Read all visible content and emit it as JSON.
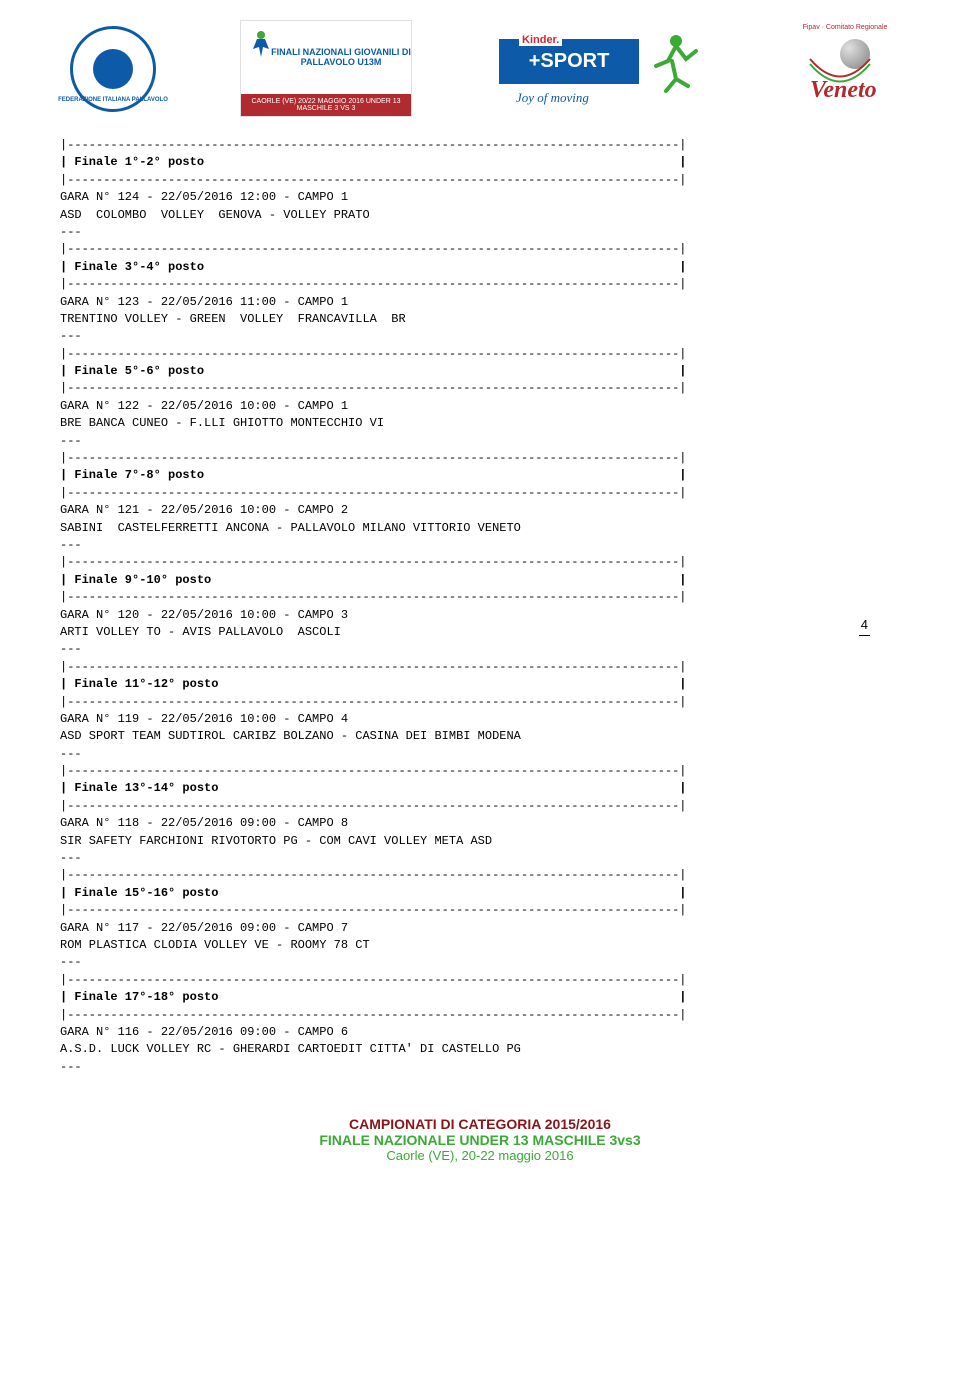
{
  "page_number": "4",
  "header": {
    "fipav_text": "FEDERAZIONE ITALIANA PALLAVOLO",
    "giovanili_top": "FINALI NAZIONALI\nGIOVANILI\nDI PALLAVOLO U13M",
    "giovanili_bottom": "CAORLE (VE)\n20/22 MAGGIO 2016\nUNDER 13 MASCHILE 3 VS 3",
    "kinder_brand": "Kinder.",
    "kinder_sport": "+SPORT",
    "kinder_joy": "Joy of moving",
    "veneto_top": "Fipav · Comitato Regionale",
    "veneto_name": "Veneto"
  },
  "dash": "|-------------------------------------------------------------------------------------|",
  "finals": [
    {
      "title": "| Finale 1°-2° posto                                                                  |",
      "match_line": "GARA N° 124 - 22/05/2016 12:00 - CAMPO 1",
      "teams": "ASD  COLOMBO  VOLLEY  GENOVA - VOLLEY PRATO"
    },
    {
      "title": "| Finale 3°-4° posto                                                                  |",
      "match_line": "GARA N° 123 - 22/05/2016 11:00 - CAMPO 1",
      "teams": "TRENTINO VOLLEY - GREEN  VOLLEY  FRANCAVILLA  BR"
    },
    {
      "title": "| Finale 5°-6° posto                                                                  |",
      "match_line": "GARA N° 122 - 22/05/2016 10:00 - CAMPO 1",
      "teams": "BRE BANCA CUNEO - F.LLI GHIOTTO MONTECCHIO VI"
    },
    {
      "title": "| Finale 7°-8° posto                                                                  |",
      "match_line": "GARA N° 121 - 22/05/2016 10:00 - CAMPO 2",
      "teams": "SABINI  CASTELFERRETTI ANCONA - PALLAVOLO MILANO VITTORIO VENETO"
    },
    {
      "title": "| Finale 9°-10° posto                                                                 |",
      "match_line": "GARA N° 120 - 22/05/2016 10:00 - CAMPO 3",
      "teams": "ARTI VOLLEY TO - AVIS PALLAVOLO  ASCOLI"
    },
    {
      "title": "| Finale 11°-12° posto                                                                |",
      "match_line": "GARA N° 119 - 22/05/2016 10:00 - CAMPO 4",
      "teams": "ASD SPORT TEAM SUDTIROL CARIBZ BOLZANO - CASINA DEI BIMBI MODENA"
    },
    {
      "title": "| Finale 13°-14° posto                                                                |",
      "match_line": "GARA N° 118 - 22/05/2016 09:00 - CAMPO 8",
      "teams": "SIR SAFETY FARCHIONI RIVOTORTO PG - COM CAVI VOLLEY META ASD"
    },
    {
      "title": "| Finale 15°-16° posto                                                                |",
      "match_line": "GARA N° 117 - 22/05/2016 09:00 - CAMPO 7",
      "teams": "ROM PLASTICA CLODIA VOLLEY VE - ROOMY 78 CT"
    },
    {
      "title": "| Finale 17°-18° posto                                                                |",
      "match_line": "GARA N° 116 - 22/05/2016 09:00 - CAMPO 6",
      "teams": "A.S.D. LUCK VOLLEY RC - GHERARDI CARTOEDIT CITTA' DI CASTELLO PG"
    }
  ],
  "sep": "---",
  "footer": {
    "line1": "CAMPIONATI DI CATEGORIA 2015/2016",
    "line2": "FINALE NAZIONALE UNDER 13 MASCHILE 3vs3",
    "line3": "Caorle (VE), 20-22 maggio 2016"
  }
}
